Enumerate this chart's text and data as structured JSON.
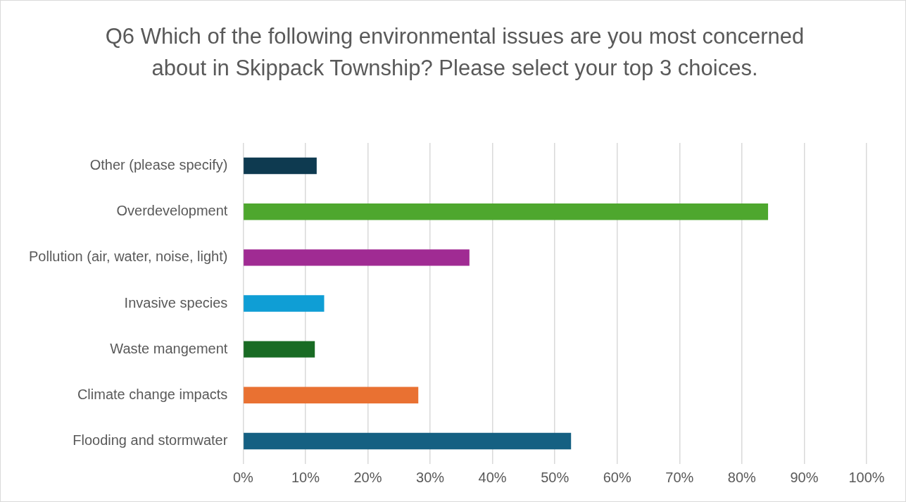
{
  "chart_data": {
    "type": "bar",
    "orientation": "horizontal",
    "title": "Q6 Which of the following environmental issues are you most concerned about in Skippack Township? Please select your top 3 choices.",
    "categories": [
      "Other (please specify)",
      "Overdevelopment",
      "Pollution (air, water, noise, light)",
      "Invasive species",
      "Waste mangement",
      "Climate change impacts",
      "Flooding and stormwater"
    ],
    "values": [
      11.8,
      84.2,
      36.3,
      13.0,
      11.5,
      28.1,
      52.6
    ],
    "colors": [
      "#0e3a50",
      "#4ea72e",
      "#a02b93",
      "#0f9ed5",
      "#196b24",
      "#e97132",
      "#156082"
    ],
    "xlim": [
      0,
      100
    ],
    "xticks": [
      {
        "value": 0,
        "label": "0%"
      },
      {
        "value": 10,
        "label": "10%"
      },
      {
        "value": 20,
        "label": "20%"
      },
      {
        "value": 30,
        "label": "30%"
      },
      {
        "value": 40,
        "label": "40%"
      },
      {
        "value": 50,
        "label": "50%"
      },
      {
        "value": 60,
        "label": "60%"
      },
      {
        "value": 70,
        "label": "70%"
      },
      {
        "value": 80,
        "label": "80%"
      },
      {
        "value": 90,
        "label": "90%"
      },
      {
        "value": 100,
        "label": "100%"
      }
    ],
    "grid": "x",
    "legend": false
  }
}
